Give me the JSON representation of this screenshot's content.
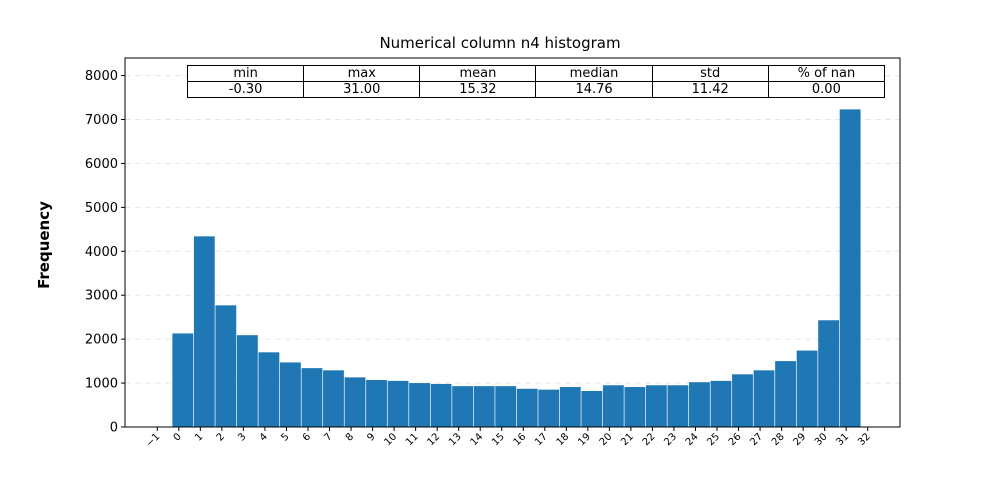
{
  "chart_data": {
    "type": "bar",
    "title": "Numerical column n4 histogram",
    "xlabel": "",
    "ylabel": "Frequency",
    "ylim": [
      0,
      8400
    ],
    "xlim": [
      -2.5,
      33.5
    ],
    "yticks": [
      "0",
      "1000",
      "2000",
      "3000",
      "4000",
      "5000",
      "6000",
      "7000",
      "8000"
    ],
    "xticks": [
      "−1",
      "0",
      "1",
      "2",
      "3",
      "4",
      "5",
      "6",
      "7",
      "8",
      "9",
      "10",
      "11",
      "12",
      "13",
      "14",
      "15",
      "16",
      "17",
      "18",
      "19",
      "20",
      "21",
      "22",
      "23",
      "24",
      "25",
      "26",
      "27",
      "28",
      "29",
      "30",
      "31",
      "32"
    ],
    "grid": "horizontal dashed",
    "bar_color": "#1f77b4",
    "bins": [
      {
        "x": -0.3,
        "value": 2130
      },
      {
        "x": 0.7,
        "value": 4340
      },
      {
        "x": 1.7,
        "value": 2770
      },
      {
        "x": 2.7,
        "value": 2090
      },
      {
        "x": 3.7,
        "value": 1700
      },
      {
        "x": 4.7,
        "value": 1470
      },
      {
        "x": 5.7,
        "value": 1340
      },
      {
        "x": 6.7,
        "value": 1290
      },
      {
        "x": 7.7,
        "value": 1130
      },
      {
        "x": 8.7,
        "value": 1070
      },
      {
        "x": 9.7,
        "value": 1050
      },
      {
        "x": 10.7,
        "value": 1000
      },
      {
        "x": 11.7,
        "value": 980
      },
      {
        "x": 12.7,
        "value": 930
      },
      {
        "x": 13.7,
        "value": 930
      },
      {
        "x": 14.7,
        "value": 930
      },
      {
        "x": 15.7,
        "value": 870
      },
      {
        "x": 16.7,
        "value": 850
      },
      {
        "x": 17.7,
        "value": 910
      },
      {
        "x": 18.7,
        "value": 820
      },
      {
        "x": 19.7,
        "value": 950
      },
      {
        "x": 20.7,
        "value": 910
      },
      {
        "x": 21.7,
        "value": 950
      },
      {
        "x": 22.7,
        "value": 950
      },
      {
        "x": 23.7,
        "value": 1020
      },
      {
        "x": 24.7,
        "value": 1050
      },
      {
        "x": 25.7,
        "value": 1200
      },
      {
        "x": 26.7,
        "value": 1290
      },
      {
        "x": 27.7,
        "value": 1500
      },
      {
        "x": 28.7,
        "value": 1740
      },
      {
        "x": 29.7,
        "value": 2430
      },
      {
        "x": 30.7,
        "value": 7230
      }
    ],
    "bin_width": 0.968,
    "stats_table": {
      "headers": [
        "min",
        "max",
        "mean",
        "median",
        "std",
        "% of nan"
      ],
      "values": [
        "-0.30",
        "31.00",
        "15.32",
        "14.76",
        "11.42",
        "0.00"
      ]
    }
  }
}
